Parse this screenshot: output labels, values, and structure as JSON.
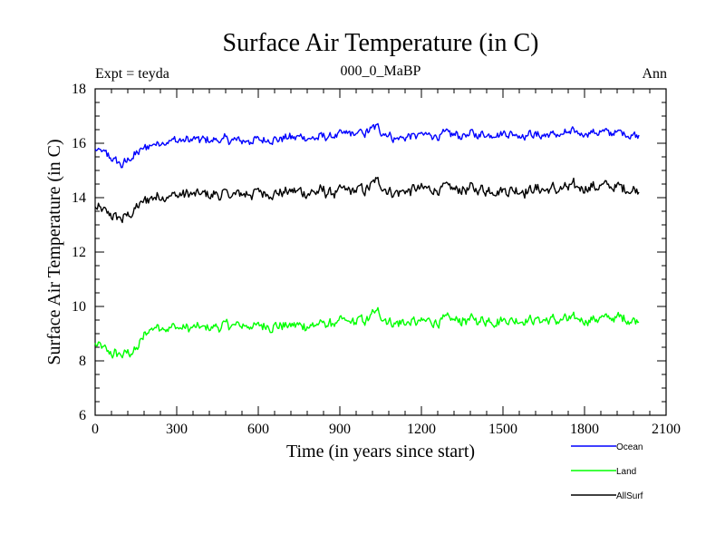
{
  "chart_data": {
    "type": "line",
    "title": "Surface Air Temperature (in C)",
    "subtitle_left": "Expt = teyda",
    "subtitle_center": "000_0_MaBP",
    "subtitle_right": "Ann",
    "xlabel": "Time (in years since start)",
    "ylabel": "Surface Air Temperature (in C)",
    "xlim": [
      0,
      2100
    ],
    "ylim": [
      6,
      18
    ],
    "xticks": [
      0,
      300,
      600,
      900,
      1200,
      1500,
      1800,
      2100
    ],
    "xtick_labels": [
      "0",
      "300",
      "600",
      "900",
      "1200",
      "1500",
      "1800",
      "2100"
    ],
    "yticks": [
      6,
      8,
      10,
      12,
      14,
      16,
      18
    ],
    "ytick_labels": [
      "6",
      "8",
      "10",
      "12",
      "14",
      "16",
      "18"
    ],
    "grid": false,
    "legend_placement": "bottom-right, below plot",
    "series": [
      {
        "name": "Ocean",
        "color": "#0000ff",
        "x": [
          0,
          50,
          100,
          150,
          200,
          250,
          300,
          400,
          500,
          600,
          700,
          800,
          900,
          1000,
          1030,
          1100,
          1200,
          1300,
          1400,
          1500,
          1600,
          1700,
          1800,
          1900,
          2000
        ],
        "values": [
          15.8,
          15.5,
          15.2,
          15.6,
          15.9,
          16.1,
          16.1,
          16.1,
          16.1,
          16.1,
          16.2,
          16.2,
          16.3,
          16.4,
          16.6,
          16.2,
          16.3,
          16.3,
          16.3,
          16.4,
          16.3,
          16.3,
          16.4,
          16.4,
          16.3
        ]
      },
      {
        "name": "Land",
        "color": "#00ff00",
        "x": [
          0,
          50,
          100,
          150,
          200,
          250,
          300,
          400,
          500,
          600,
          700,
          800,
          900,
          1000,
          1030,
          1100,
          1200,
          1300,
          1400,
          1500,
          1600,
          1700,
          1800,
          1900,
          2000
        ],
        "values": [
          8.6,
          8.3,
          8.2,
          8.4,
          9.2,
          9.3,
          9.2,
          9.2,
          9.3,
          9.3,
          9.3,
          9.3,
          9.4,
          9.5,
          9.8,
          9.4,
          9.4,
          9.5,
          9.5,
          9.5,
          9.5,
          9.5,
          9.5,
          9.6,
          9.5
        ]
      },
      {
        "name": "AllSurf",
        "color": "#000000",
        "x": [
          0,
          50,
          100,
          150,
          200,
          250,
          300,
          400,
          500,
          600,
          700,
          800,
          900,
          1000,
          1030,
          1100,
          1200,
          1300,
          1400,
          1500,
          1600,
          1700,
          1800,
          1900,
          2000
        ],
        "values": [
          13.6,
          13.4,
          13.2,
          13.6,
          14.0,
          14.1,
          14.1,
          14.1,
          14.1,
          14.2,
          14.2,
          14.2,
          14.2,
          14.3,
          14.6,
          14.2,
          14.3,
          14.3,
          14.3,
          14.3,
          14.3,
          14.3,
          14.4,
          14.4,
          14.3
        ]
      }
    ]
  }
}
